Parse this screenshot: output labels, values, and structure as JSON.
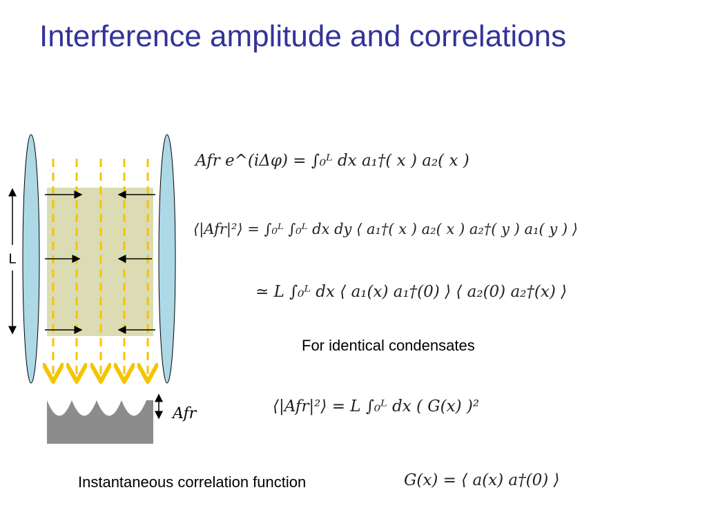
{
  "slide": {
    "title": "Interference amplitude and correlations",
    "diagram": {
      "length_label": "L",
      "amplitude_label": "Afr"
    },
    "equations": [
      "Afr e^(iΔφ)  =  ∫₀ᴸ dx  a₁†( x ) a₂( x )",
      "⟨|Afr|²⟩ = ∫₀ᴸ ∫₀ᴸ dx dy ⟨ a₁†( x ) a₂( x ) a₂†( y ) a₁( y ) ⟩",
      "≃ L ∫₀ᴸ dx ⟨ a₁(x) a₁†(0) ⟩ ⟨ a₂(0) a₂†(x) ⟩",
      "⟨|Afr|²⟩  =  L ∫₀ᴸ dx ( G(x) )²",
      "G(x)  =  ⟨ a(x) a†(0) ⟩"
    ],
    "note": "For identical condensates",
    "caption": "Instantaneous correlation function"
  }
}
